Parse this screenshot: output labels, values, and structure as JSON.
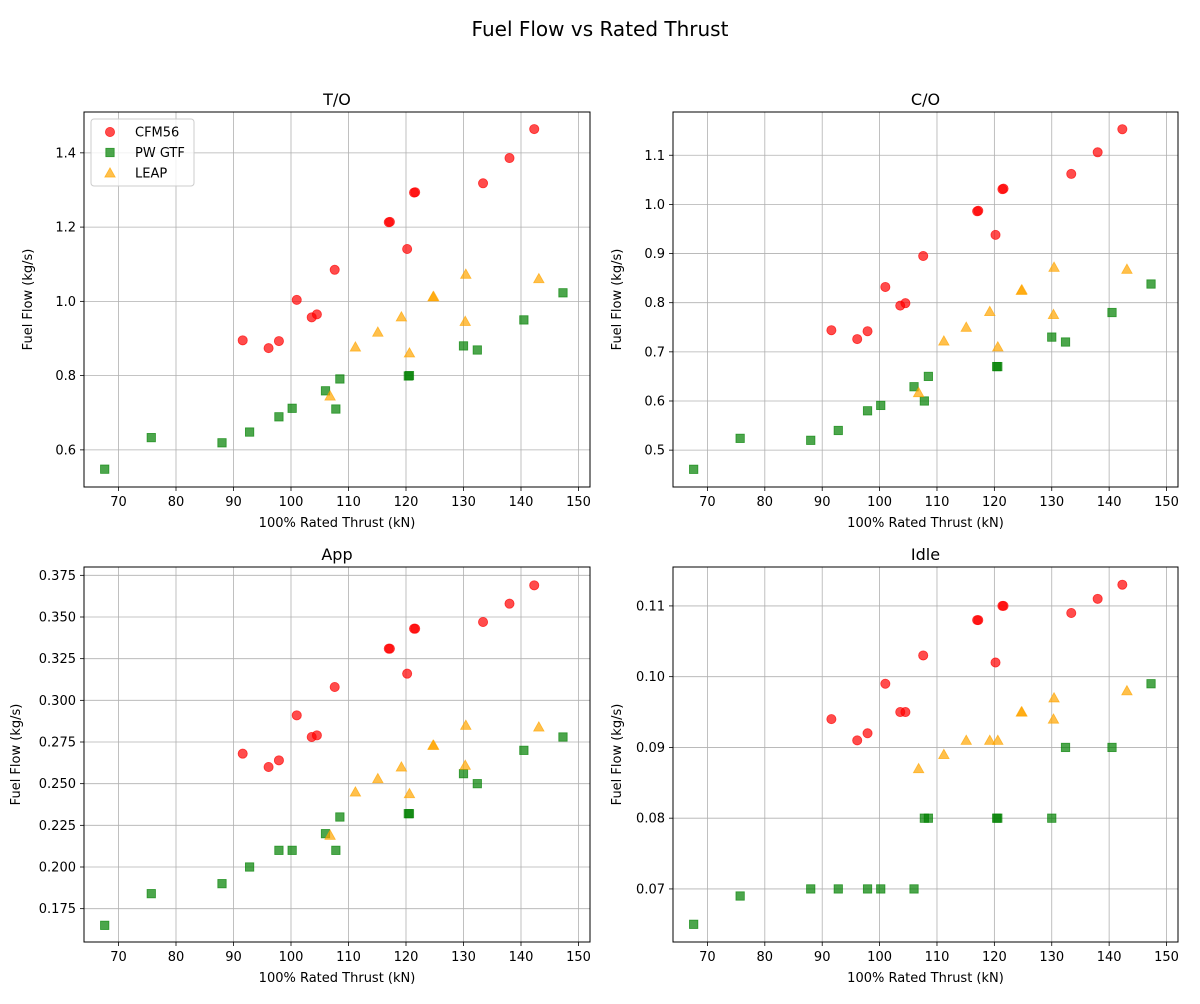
{
  "figure": {
    "title": "Fuel Flow vs Rated Thrust"
  },
  "legend": {
    "entries": [
      {
        "name": "CFM56",
        "marker": "circle",
        "color": "#ff0000"
      },
      {
        "name": "PW GTF",
        "marker": "square",
        "color": "#008000"
      },
      {
        "name": "LEAP",
        "marker": "triangle",
        "color": "#ffa500"
      }
    ],
    "placement": "upper-left"
  },
  "chart_data": [
    {
      "type": "scatter",
      "title": "T/O",
      "xlabel": "100% Rated Thrust (kN)",
      "ylabel": "Fuel Flow (kg/s)",
      "xlim": [
        64,
        152
      ],
      "ylim": [
        0.5,
        1.51
      ],
      "xticks": [
        70,
        80,
        90,
        100,
        110,
        120,
        130,
        140,
        150
      ],
      "yticks": [
        0.6,
        0.8,
        1.0,
        1.2,
        1.4
      ],
      "tick_decimals": 1,
      "grid": true,
      "show_legend": true,
      "series": [
        {
          "name": "CFM56",
          "marker": "circle",
          "color": "#ff0000",
          "x": [
            91.6,
            96.1,
            97.9,
            101.0,
            103.6,
            104.5,
            107.6,
            117.0,
            117.2,
            120.2,
            121.4,
            121.6,
            133.4,
            138.0,
            142.3
          ],
          "y": [
            0.895,
            0.874,
            0.893,
            1.004,
            0.957,
            0.965,
            1.085,
            1.213,
            1.214,
            1.141,
            1.293,
            1.294,
            1.318,
            1.386,
            1.464
          ]
        },
        {
          "name": "PW GTF",
          "marker": "square",
          "color": "#008000",
          "x": [
            67.6,
            75.7,
            88.0,
            92.8,
            97.9,
            100.2,
            106.0,
            107.8,
            108.5,
            120.4,
            120.6,
            130.0,
            132.4,
            140.5,
            147.3
          ],
          "y": [
            0.548,
            0.633,
            0.619,
            0.648,
            0.689,
            0.712,
            0.759,
            0.71,
            0.791,
            0.799,
            0.8,
            0.88,
            0.869,
            0.95,
            1.023
          ]
        },
        {
          "name": "LEAP",
          "marker": "triangle",
          "color": "#ffa500",
          "x": [
            106.8,
            111.2,
            115.1,
            119.2,
            120.6,
            124.7,
            124.8,
            130.3,
            130.4,
            143.1
          ],
          "y": [
            0.745,
            0.877,
            0.917,
            0.958,
            0.861,
            1.012,
            1.013,
            0.946,
            1.073,
            1.061
          ]
        }
      ]
    },
    {
      "type": "scatter",
      "title": "C/O",
      "xlabel": "100% Rated Thrust (kN)",
      "ylabel": "Fuel Flow (kg/s)",
      "xlim": [
        64,
        152
      ],
      "ylim": [
        0.425,
        1.188
      ],
      "xticks": [
        70,
        80,
        90,
        100,
        110,
        120,
        130,
        140,
        150
      ],
      "yticks": [
        0.5,
        0.6,
        0.7,
        0.8,
        0.9,
        1.0,
        1.1
      ],
      "tick_decimals": 1,
      "grid": true,
      "show_legend": false,
      "series": [
        {
          "name": "CFM56",
          "marker": "circle",
          "color": "#ff0000",
          "x": [
            91.6,
            96.1,
            97.9,
            101.0,
            103.6,
            104.5,
            107.6,
            117.0,
            117.2,
            120.2,
            121.4,
            121.6,
            133.4,
            138.0,
            142.3
          ],
          "y": [
            0.744,
            0.726,
            0.742,
            0.832,
            0.794,
            0.799,
            0.895,
            0.986,
            0.987,
            0.938,
            1.031,
            1.032,
            1.062,
            1.106,
            1.153
          ]
        },
        {
          "name": "PW GTF",
          "marker": "square",
          "color": "#008000",
          "x": [
            67.6,
            75.7,
            88.0,
            92.8,
            97.9,
            100.2,
            106.0,
            107.8,
            108.5,
            120.4,
            120.6,
            130.0,
            132.4,
            140.5,
            147.3
          ],
          "y": [
            0.461,
            0.524,
            0.52,
            0.54,
            0.58,
            0.591,
            0.629,
            0.6,
            0.65,
            0.67,
            0.67,
            0.73,
            0.72,
            0.78,
            0.838
          ]
        },
        {
          "name": "LEAP",
          "marker": "triangle",
          "color": "#ffa500",
          "x": [
            106.8,
            111.2,
            115.1,
            119.2,
            120.6,
            124.7,
            124.8,
            130.3,
            130.4,
            143.1
          ],
          "y": [
            0.617,
            0.722,
            0.75,
            0.782,
            0.71,
            0.825,
            0.826,
            0.776,
            0.872,
            0.868
          ]
        }
      ]
    },
    {
      "type": "scatter",
      "title": "App",
      "xlabel": "100% Rated Thrust (kN)",
      "ylabel": "Fuel Flow (kg/s)",
      "xlim": [
        64,
        152
      ],
      "ylim": [
        0.155,
        0.38
      ],
      "xticks": [
        70,
        80,
        90,
        100,
        110,
        120,
        130,
        140,
        150
      ],
      "yticks": [
        0.175,
        0.2,
        0.225,
        0.25,
        0.275,
        0.3,
        0.325,
        0.35,
        0.375
      ],
      "tick_decimals": 3,
      "grid": true,
      "show_legend": false,
      "series": [
        {
          "name": "CFM56",
          "marker": "circle",
          "color": "#ff0000",
          "x": [
            91.6,
            96.1,
            97.9,
            101.0,
            103.6,
            104.5,
            107.6,
            117.0,
            117.2,
            120.2,
            121.4,
            121.6,
            133.4,
            138.0,
            142.3
          ],
          "y": [
            0.268,
            0.26,
            0.264,
            0.291,
            0.278,
            0.279,
            0.308,
            0.331,
            0.331,
            0.316,
            0.343,
            0.343,
            0.347,
            0.358,
            0.369
          ]
        },
        {
          "name": "PW GTF",
          "marker": "square",
          "color": "#008000",
          "x": [
            67.6,
            75.7,
            88.0,
            92.8,
            97.9,
            100.2,
            106.0,
            107.8,
            108.5,
            120.4,
            120.6,
            130.0,
            132.4,
            140.5,
            147.3
          ],
          "y": [
            0.165,
            0.184,
            0.19,
            0.2,
            0.21,
            0.21,
            0.22,
            0.21,
            0.23,
            0.232,
            0.232,
            0.256,
            0.25,
            0.27,
            0.278
          ]
        },
        {
          "name": "LEAP",
          "marker": "triangle",
          "color": "#ffa500",
          "x": [
            106.8,
            111.2,
            115.1,
            119.2,
            120.6,
            124.7,
            124.8,
            130.3,
            130.4,
            143.1
          ],
          "y": [
            0.219,
            0.245,
            0.253,
            0.26,
            0.244,
            0.273,
            0.273,
            0.261,
            0.285,
            0.284
          ]
        }
      ]
    },
    {
      "type": "scatter",
      "title": "Idle",
      "xlabel": "100% Rated Thrust (kN)",
      "ylabel": "Fuel Flow (kg/s)",
      "xlim": [
        64,
        152
      ],
      "ylim": [
        0.0625,
        0.1155
      ],
      "xticks": [
        70,
        80,
        90,
        100,
        110,
        120,
        130,
        140,
        150
      ],
      "yticks": [
        0.07,
        0.08,
        0.09,
        0.1,
        0.11
      ],
      "tick_decimals": 2,
      "grid": true,
      "show_legend": false,
      "series": [
        {
          "name": "CFM56",
          "marker": "circle",
          "color": "#ff0000",
          "x": [
            91.6,
            96.1,
            97.9,
            101.0,
            103.6,
            104.5,
            107.6,
            117.0,
            117.2,
            120.2,
            121.4,
            121.6,
            133.4,
            138.0,
            142.3
          ],
          "y": [
            0.094,
            0.091,
            0.092,
            0.099,
            0.095,
            0.095,
            0.103,
            0.108,
            0.108,
            0.102,
            0.11,
            0.11,
            0.109,
            0.111,
            0.113
          ]
        },
        {
          "name": "PW GTF",
          "marker": "square",
          "color": "#008000",
          "x": [
            67.6,
            75.7,
            88.0,
            92.8,
            97.9,
            100.2,
            106.0,
            107.8,
            108.5,
            120.4,
            120.6,
            130.0,
            132.4,
            140.5,
            147.3
          ],
          "y": [
            0.065,
            0.069,
            0.07,
            0.07,
            0.07,
            0.07,
            0.07,
            0.08,
            0.08,
            0.08,
            0.08,
            0.08,
            0.09,
            0.09,
            0.099
          ]
        },
        {
          "name": "LEAP",
          "marker": "triangle",
          "color": "#ffa500",
          "x": [
            106.8,
            111.2,
            115.1,
            119.2,
            120.6,
            124.7,
            124.8,
            130.3,
            130.4,
            143.1
          ],
          "y": [
            0.087,
            0.089,
            0.091,
            0.091,
            0.091,
            0.095,
            0.095,
            0.094,
            0.097,
            0.098
          ]
        }
      ]
    }
  ]
}
